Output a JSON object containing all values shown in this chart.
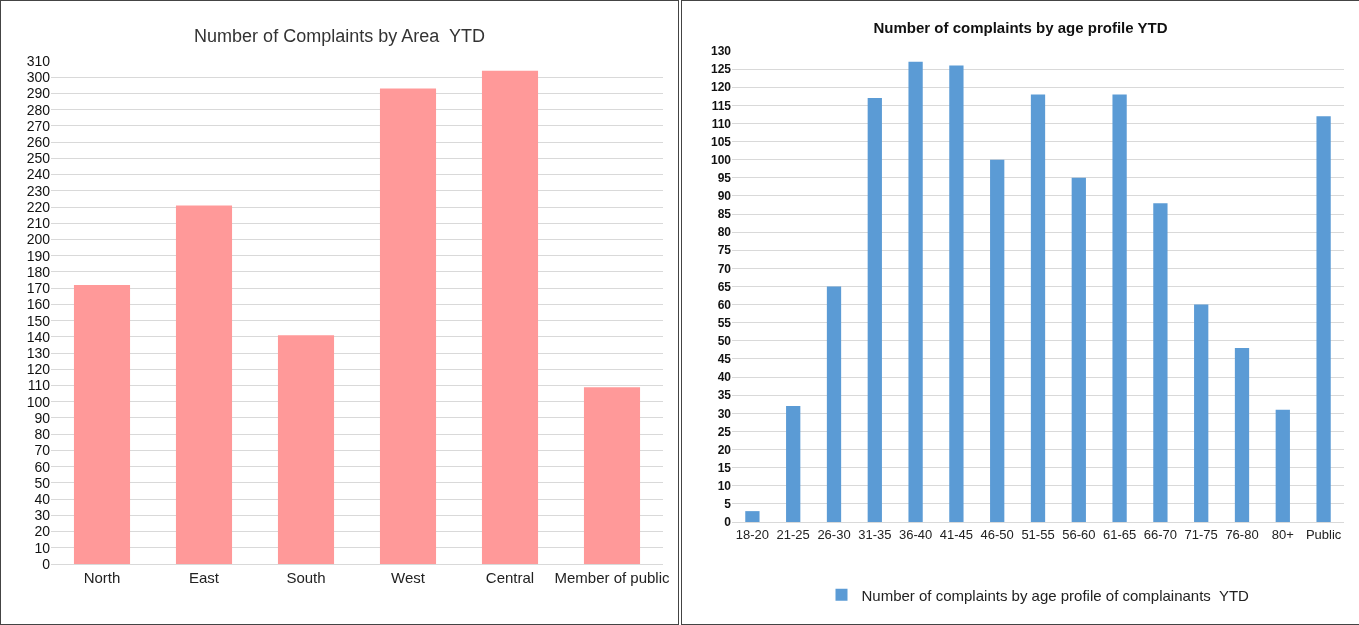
{
  "chart_data": [
    {
      "type": "bar",
      "title": "Number of Complaints by Area  YTD",
      "categories": [
        "North",
        "East",
        "South",
        "West",
        "Central",
        "Member of public"
      ],
      "series": [
        {
          "color": "#ff9999",
          "values": [
            172,
            221,
            141,
            293,
            304,
            109
          ]
        }
      ],
      "ylim": [
        0,
        310
      ],
      "yticks": [
        0,
        10,
        20,
        30,
        40,
        50,
        60,
        70,
        80,
        90,
        100,
        110,
        120,
        130,
        140,
        150,
        160,
        170,
        180,
        190,
        200,
        210,
        220,
        230,
        240,
        250,
        260,
        270,
        280,
        290,
        300,
        310
      ],
      "grid": "y",
      "legend": false
    },
    {
      "type": "bar",
      "title": "Number of complaints by age profile YTD",
      "categories": [
        "18-20",
        "21-25",
        "26-30",
        "31-35",
        "36-40",
        "41-45",
        "46-50",
        "51-55",
        "56-60",
        "61-65",
        "66-70",
        "71-75",
        "76-80",
        "80+",
        "Public"
      ],
      "series": [
        {
          "name": "Number of complaints by age profile of complainants  YTD",
          "color": "#5b9bd5",
          "values": [
            3,
            32,
            65,
            117,
            127,
            126,
            100,
            118,
            95,
            118,
            88,
            60,
            48,
            31,
            112
          ]
        }
      ],
      "ylim": [
        0,
        130
      ],
      "yticks": [
        0,
        5,
        10,
        15,
        20,
        25,
        30,
        35,
        40,
        45,
        50,
        55,
        60,
        65,
        70,
        75,
        80,
        85,
        90,
        95,
        100,
        105,
        110,
        115,
        120,
        125,
        130
      ],
      "grid": "y",
      "legend": "bottom"
    }
  ]
}
